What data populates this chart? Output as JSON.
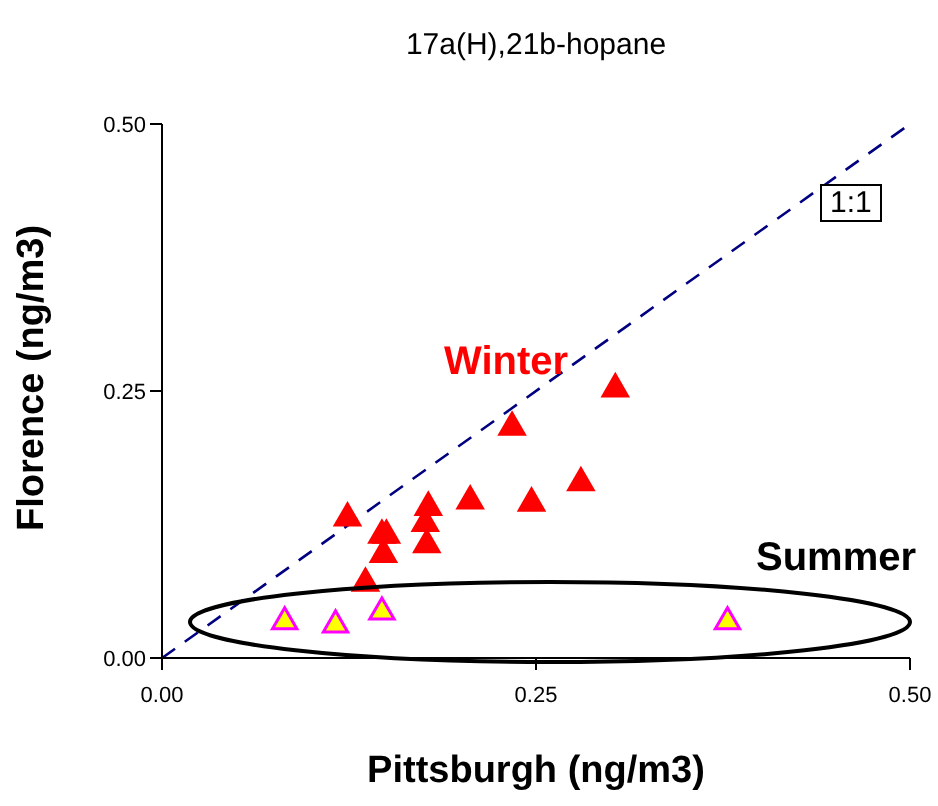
{
  "chart_data": {
    "type": "scatter",
    "title": "17a(H),21b-hopane",
    "xlabel": "Pittsburgh (ng/m3)",
    "ylabel": "Florence (ng/m3)",
    "xlim": [
      0,
      0.5
    ],
    "ylim": [
      0,
      0.5
    ],
    "xticks": [
      {
        "value": 0,
        "label": "0.00"
      },
      {
        "value": 0.25,
        "label": "0.25"
      },
      {
        "value": 0.5,
        "label": "0.50"
      }
    ],
    "yticks": [
      {
        "value": 0,
        "label": "0.00"
      },
      {
        "value": 0.25,
        "label": "0.25"
      },
      {
        "value": 0.5,
        "label": "0.50"
      }
    ],
    "marker": "triangle",
    "series": [
      {
        "name": "Winter",
        "color": "#ff0000",
        "x": [
          0.124,
          0.147,
          0.15,
          0.148,
          0.136,
          0.178,
          0.176,
          0.177,
          0.206,
          0.234,
          0.247,
          0.28,
          0.303
        ],
        "values": [
          0.131,
          0.115,
          0.115,
          0.097,
          0.07,
          0.141,
          0.126,
          0.106,
          0.147,
          0.216,
          0.145,
          0.164,
          0.252
        ]
      },
      {
        "name": "Summer",
        "color": "#ffff00",
        "x": [
          0.082,
          0.116,
          0.147,
          0.378
        ],
        "values": [
          0.034,
          0.031,
          0.043,
          0.034
        ]
      },
      {
        "name": "1:1",
        "type": "line",
        "color": "#000080",
        "line_style": "dashed",
        "marker": "none",
        "x": [
          0,
          0.5
        ],
        "values": [
          0,
          0.5
        ]
      }
    ]
  }
}
